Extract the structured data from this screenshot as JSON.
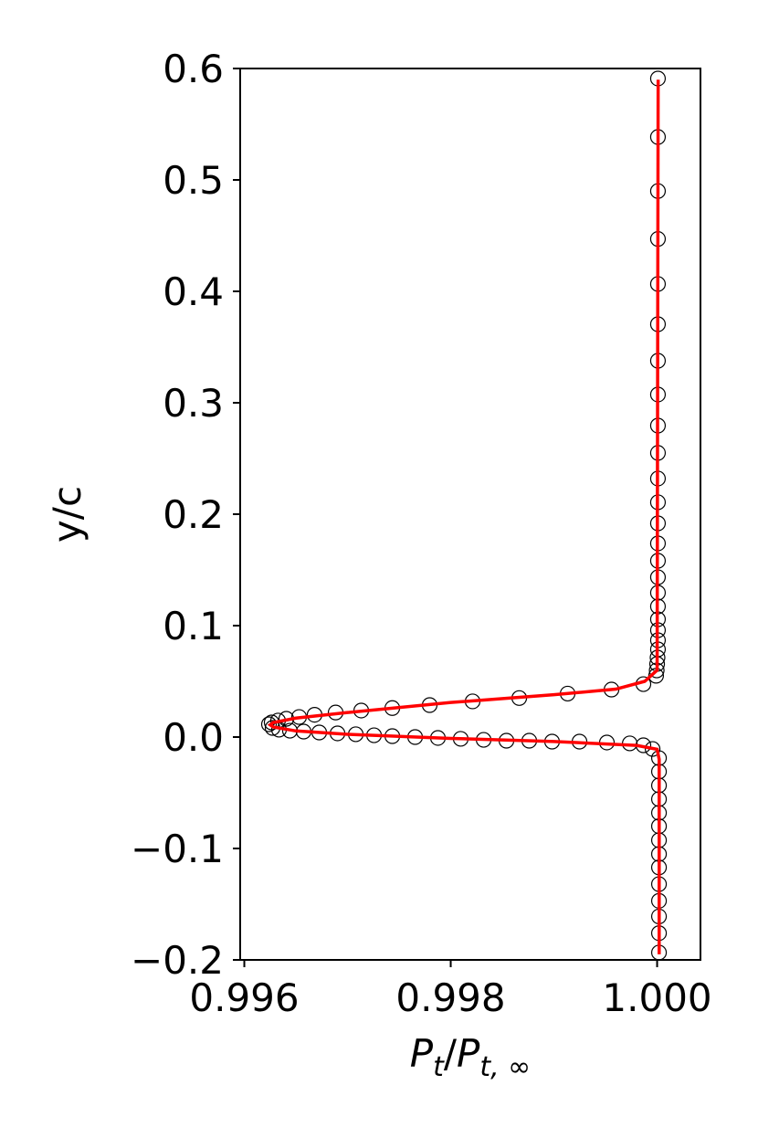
{
  "chart_data": {
    "type": "line",
    "xlabel": [
      "P",
      "t",
      "/",
      "P",
      "t, ∞"
    ],
    "ylabel": "y/c",
    "xlim": [
      0.99596,
      1.00042
    ],
    "ylim": [
      -0.2,
      0.6
    ],
    "xticks": [
      0.996,
      0.998,
      {
        "value": 1,
        "label": "1.000"
      }
    ],
    "yticks": [
      {
        "value": -0.2,
        "label": "−0.2"
      },
      {
        "value": -0.1,
        "label": "−0.1"
      },
      {
        "value": 0,
        "label": "0.0"
      },
      0.1,
      0.2,
      0.3,
      0.4,
      0.5,
      0.6
    ],
    "grid": false,
    "series": [
      {
        "style": "marker",
        "color": "#000000",
        "x": [
          1.000008,
          1.000008,
          1.000008,
          1.000008,
          1.000008,
          1.000008,
          1.000008,
          1.000008,
          1.000008,
          1.000008,
          1.000008,
          1.000008,
          1.000008,
          1.000008,
          1.000008,
          1.000008,
          1.000008,
          1.000008,
          1.000008,
          1.000008,
          1.000008,
          1.000008,
          1.000004,
          1.0,
          0.999996,
          0.99999,
          0.999867,
          0.999558,
          0.999133,
          0.998664,
          0.998212,
          0.997796,
          0.997434,
          0.997133,
          0.996885,
          0.996681,
          0.996531,
          0.996407,
          0.996327,
          0.996265,
          0.996239,
          0.996274,
          0.996336,
          0.996442,
          0.996575,
          0.996726,
          0.996903,
          0.99708,
          0.997257,
          0.997434,
          0.997655,
          0.997876,
          0.998097,
          0.998319,
          0.99854,
          0.998761,
          0.998982,
          0.999248,
          0.999513,
          0.999735,
          0.999867,
          0.999956,
          1.000018,
          1.000018,
          1.000018,
          1.000018,
          1.000018,
          1.000018,
          1.000018,
          1.000018,
          1.000018,
          1.000018,
          1.000018,
          1.000018,
          1.000018,
          1.000018
        ],
        "values": [
          0.591,
          0.5385,
          0.49,
          0.447,
          0.4066,
          0.3705,
          0.3377,
          0.3074,
          0.2795,
          0.255,
          0.232,
          0.2107,
          0.1918,
          0.1738,
          0.1582,
          0.1434,
          0.1295,
          0.1172,
          0.1057,
          0.0959,
          0.0869,
          0.0787,
          0.0713,
          0.0656,
          0.0598,
          0.055,
          0.0475,
          0.0426,
          0.039,
          0.035,
          0.032,
          0.0287,
          0.026,
          0.0238,
          0.022,
          0.02,
          0.018,
          0.0164,
          0.0148,
          0.0131,
          0.0115,
          0.0082,
          0.0066,
          0.0057,
          0.0049,
          0.0041,
          0.0033,
          0.0025,
          0.0016,
          0.0008,
          0.0,
          -0.0008,
          -0.0016,
          -0.0025,
          -0.0033,
          -0.0033,
          -0.0041,
          -0.0041,
          -0.0049,
          -0.0057,
          -0.0074,
          -0.0107,
          -0.0189,
          -0.031,
          -0.0434,
          -0.0557,
          -0.068,
          -0.08,
          -0.0926,
          -0.105,
          -0.117,
          -0.132,
          -0.147,
          -0.161,
          -0.176,
          -0.1934
        ]
      },
      {
        "style": "line",
        "color": "#ff0000",
        "x": [
          1.00001,
          1.0,
          0.99988,
          0.9996,
          0.999,
          0.998,
          0.997,
          0.9965,
          0.99628,
          0.99625,
          0.99628,
          0.9965,
          0.997,
          0.998,
          0.999,
          0.9998,
          1.0,
          1.00002,
          1.00002
        ],
        "values": [
          0.59,
          0.06,
          0.05,
          0.043,
          0.038,
          0.031,
          0.022,
          0.017,
          0.013,
          0.011,
          0.009,
          0.0055,
          0.0025,
          -0.0012,
          -0.004,
          -0.0075,
          -0.011,
          -0.02,
          -0.195
        ]
      }
    ]
  }
}
